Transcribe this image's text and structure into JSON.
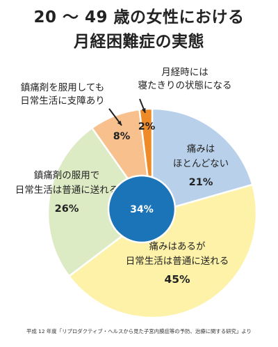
{
  "title": {
    "line1": "20 〜 49 歳の女性における",
    "line2": "月経困難症の実態"
  },
  "source": "平成 12 年度「リプロダクティブ・ヘルスから見た子宮内膜症等の予防、治療に関する研究」より",
  "chart_data": {
    "type": "pie",
    "slices": [
      {
        "label_lines": [
          "痛みは",
          "ほとんどない"
        ],
        "value": 21,
        "value_label": "21%",
        "color": "#b8d0ea"
      },
      {
        "label_lines": [
          "痛みはあるが",
          "日常生活は普通に送れる"
        ],
        "value": 45,
        "value_label": "45%",
        "color": "#fdf2a8"
      },
      {
        "label_lines": [
          "鎮痛剤の服用で",
          "日常生活は普通に送れる"
        ],
        "value": 26,
        "value_label": "26%",
        "color": "#ddebc4"
      },
      {
        "label_lines": [
          "鎮痛剤を服用しても",
          "日常生活に支障あり"
        ],
        "value": 8,
        "value_label": "8%",
        "color": "#f8c08c"
      },
      {
        "label_lines": [
          "月経時には",
          "寝たきりの状態になる"
        ],
        "value": 2,
        "value_label": "2%",
        "color": "#ee8a28"
      }
    ],
    "center_value": 34,
    "center_label": "34%",
    "center_color": "#1b74b8"
  }
}
